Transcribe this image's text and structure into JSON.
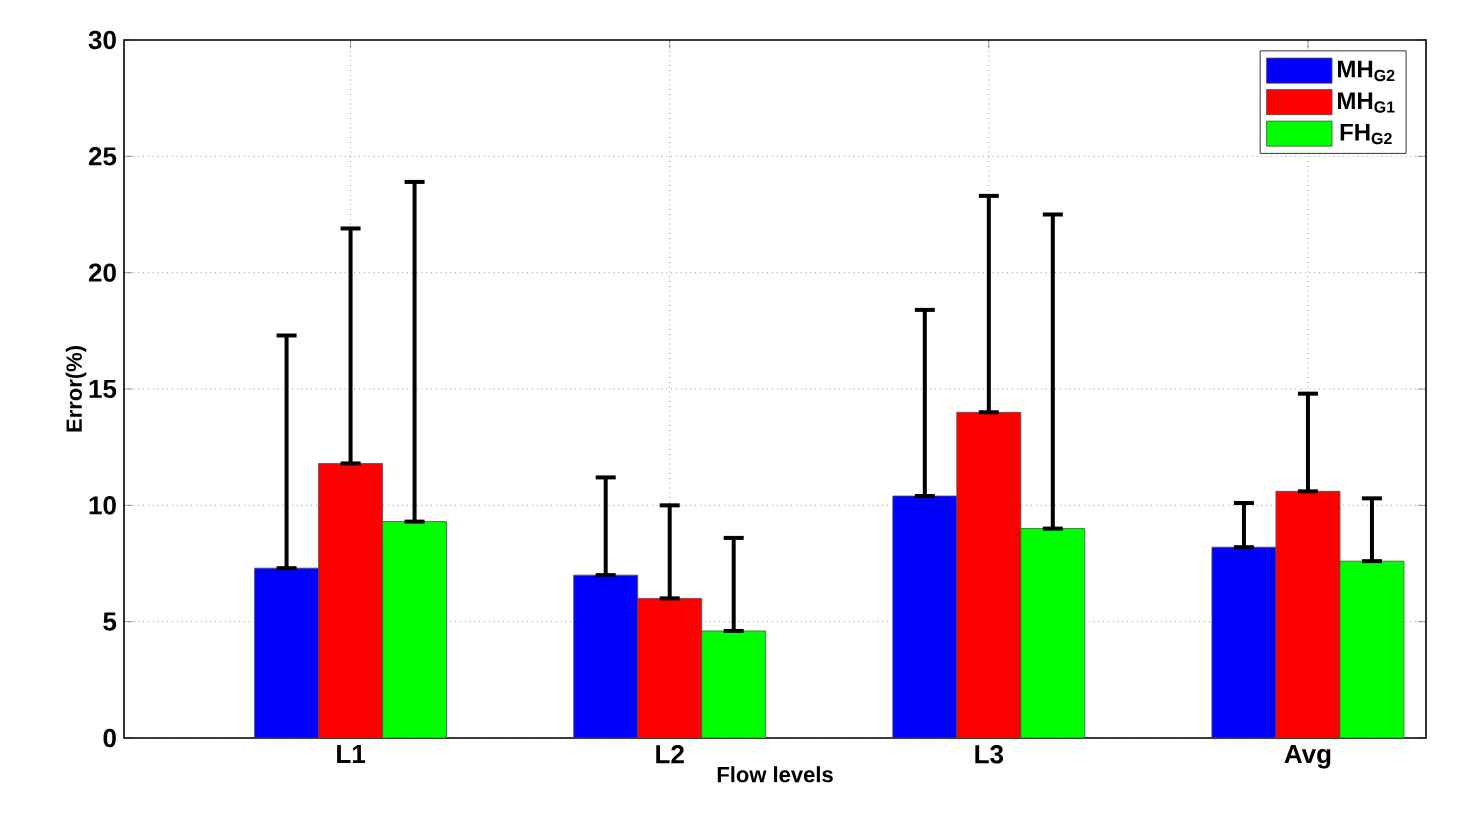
{
  "chart_data": {
    "type": "bar",
    "xlabel": "Flow levels",
    "ylabel": "Error(%)",
    "categories": [
      "L1",
      "L2",
      "L3",
      "Avg"
    ],
    "series": [
      {
        "name": "MH$_{G2}$",
        "color": "#0000ff",
        "values": [
          7.3,
          7.0,
          10.4,
          8.2
        ],
        "errors": [
          [
            7.3,
            17.3
          ],
          [
            7.0,
            11.2
          ],
          [
            10.4,
            18.4
          ],
          [
            8.2,
            10.1
          ]
        ]
      },
      {
        "name": "MH$_{G1}$",
        "color": "#ff0000",
        "values": [
          11.8,
          6.0,
          14.0,
          10.6
        ],
        "errors": [
          [
            11.8,
            21.9
          ],
          [
            6.0,
            10.0
          ],
          [
            14.0,
            23.3
          ],
          [
            10.6,
            14.8
          ]
        ]
      },
      {
        "name": "FH$_{G2}$",
        "color": "#00ff00",
        "values": [
          9.3,
          4.6,
          9.0,
          7.6
        ],
        "errors": [
          [
            9.3,
            23.9
          ],
          [
            4.6,
            8.6
          ],
          [
            9.0,
            22.5
          ],
          [
            7.6,
            10.3
          ]
        ]
      }
    ],
    "ylim": [
      0,
      30
    ],
    "yticks": [
      0,
      5,
      10,
      15,
      20,
      25,
      30
    ],
    "grid": true,
    "legend": "top right"
  }
}
